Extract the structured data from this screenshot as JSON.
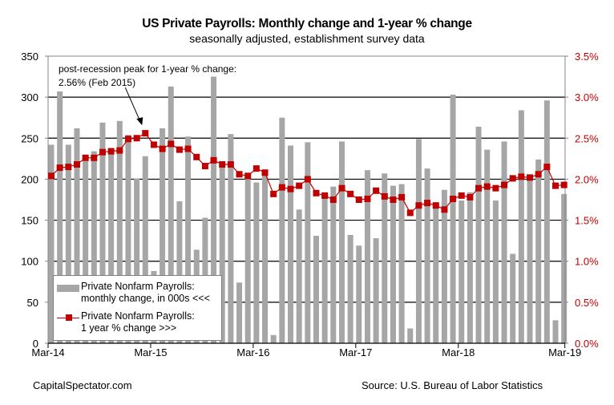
{
  "chart_data": {
    "type": "bar",
    "title": "US Private Payrolls: Monthly change and 1-year % change",
    "subtitle": "seasonally adjusted, establishment survey data",
    "xlabel": "",
    "ylabel": "",
    "y2label": "",
    "ylim": [
      0,
      350
    ],
    "y2lim": [
      0,
      3.5
    ],
    "grid": true,
    "yticks": [
      "0",
      "50",
      "100",
      "150",
      "200",
      "250",
      "300",
      "350"
    ],
    "y2ticks": [
      "0.0%",
      "0.5%",
      "1.0%",
      "1.5%",
      "2.0%",
      "2.5%",
      "3.0%",
      "3.5%"
    ],
    "xtick_labels": [
      "Mar-14",
      "Mar-15",
      "Mar-16",
      "Mar-17",
      "Mar-18",
      "Mar-19"
    ],
    "x": [
      "Mar-14",
      "Apr-14",
      "May-14",
      "Jun-14",
      "Jul-14",
      "Aug-14",
      "Sep-14",
      "Oct-14",
      "Nov-14",
      "Dec-14",
      "Jan-15",
      "Feb-15",
      "Mar-15",
      "Apr-15",
      "May-15",
      "Jun-15",
      "Jul-15",
      "Aug-15",
      "Sep-15",
      "Oct-15",
      "Nov-15",
      "Dec-15",
      "Jan-16",
      "Feb-16",
      "Mar-16",
      "Apr-16",
      "May-16",
      "Jun-16",
      "Jul-16",
      "Aug-16",
      "Sep-16",
      "Oct-16",
      "Nov-16",
      "Dec-16",
      "Jan-17",
      "Feb-17",
      "Mar-17",
      "Apr-17",
      "May-17",
      "Jun-17",
      "Jul-17",
      "Aug-17",
      "Sep-17",
      "Oct-17",
      "Nov-17",
      "Dec-17",
      "Jan-18",
      "Feb-18",
      "Mar-18",
      "Apr-18",
      "May-18",
      "Jun-18",
      "Jul-18",
      "Aug-18",
      "Sep-18",
      "Oct-18",
      "Nov-18",
      "Dec-18",
      "Jan-19",
      "Feb-19",
      "Mar-19"
    ],
    "series": [
      {
        "name": "Private Nonfarm Payrolls: monthly change, in 000s <<<",
        "type": "bar",
        "axis": "left",
        "color": "#a6a6a6",
        "values": [
          242,
          307,
          242,
          262,
          222,
          234,
          269,
          238,
          271,
          254,
          201,
          228,
          88,
          262,
          313,
          173,
          252,
          114,
          153,
          325,
          217,
          255,
          74,
          201,
          196,
          206,
          10,
          275,
          241,
          163,
          245,
          131,
          184,
          191,
          246,
          132,
          119,
          211,
          128,
          207,
          192,
          194,
          18,
          249,
          213,
          171,
          187,
          303,
          174,
          184,
          264,
          236,
          174,
          246,
          109,
          284,
          202,
          224,
          296,
          28,
          182
        ]
      },
      {
        "name": "Private Nonfarm Payrolls: 1 year % change >>>",
        "type": "line",
        "axis": "right",
        "color": "#c00000",
        "values": [
          2.04,
          2.14,
          2.15,
          2.18,
          2.26,
          2.26,
          2.33,
          2.34,
          2.35,
          2.49,
          2.5,
          2.56,
          2.42,
          2.37,
          2.43,
          2.36,
          2.37,
          2.27,
          2.16,
          2.23,
          2.18,
          2.18,
          2.06,
          2.04,
          2.13,
          2.08,
          1.82,
          1.9,
          1.88,
          1.92,
          2.0,
          1.83,
          1.8,
          1.75,
          1.89,
          1.82,
          1.75,
          1.76,
          1.86,
          1.79,
          1.75,
          1.78,
          1.59,
          1.68,
          1.71,
          1.68,
          1.63,
          1.76,
          1.8,
          1.78,
          1.89,
          1.91,
          1.89,
          1.93,
          2.01,
          2.03,
          2.02,
          2.06,
          2.15,
          1.92,
          1.93
        ]
      }
    ],
    "legend_position": "bottom-left",
    "annotation": {
      "text_line1": "post-recession peak for 1-year % change:",
      "text_line2": "2.56% (Feb 2015)",
      "target": "Feb-15"
    }
  },
  "legend": {
    "bar_line1": "Private Nonfarm Payrolls:",
    "bar_line2": "monthly change, in 000s <<<",
    "line_line1": "Private Nonfarm Payrolls:",
    "line_line2": "1 year % change >>>"
  },
  "footer": {
    "left": "CapitalSpectator.com",
    "right": "Source: U.S. Bureau of Labor Statistics"
  }
}
